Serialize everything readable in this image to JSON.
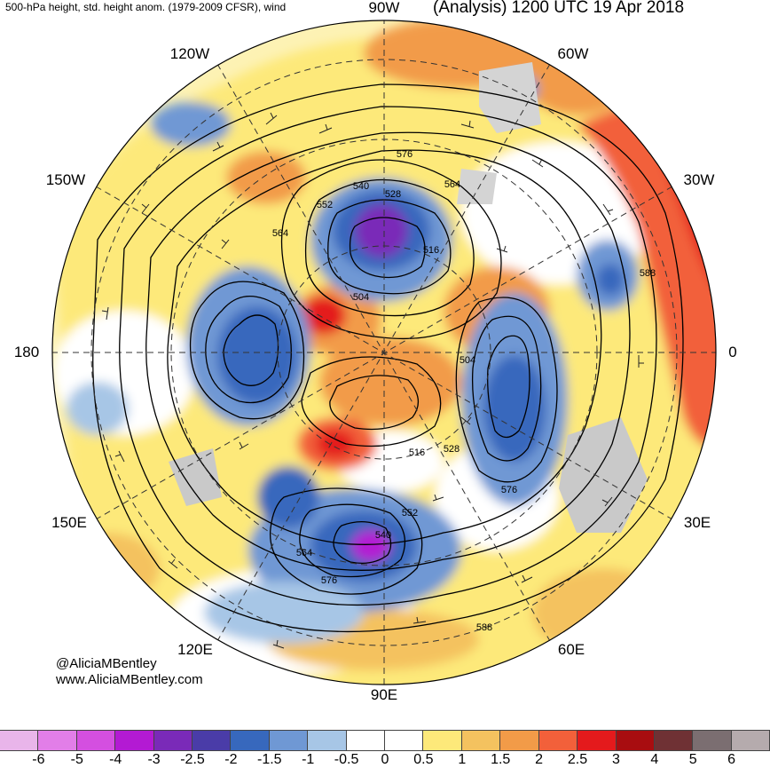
{
  "header": {
    "left_title": "500-hPa height, std. height anom. (1979-2009 CFSR), wind",
    "right_title": "(Analysis) 1200 UTC 19 Apr 2018"
  },
  "credits": {
    "handle": "@AliciaMBentley",
    "website": "www.AliciaMBentley.com"
  },
  "longitude_labels": [
    "90W",
    "60W",
    "30W",
    "0",
    "30E",
    "60E",
    "90E",
    "120E",
    "150E",
    "180",
    "150W",
    "120W"
  ],
  "contour_labels": [
    "576",
    "540",
    "528",
    "564",
    "552",
    "564",
    "516",
    "504",
    "588",
    "504",
    "516",
    "528",
    "576",
    "552",
    "540",
    "564",
    "576",
    "588"
  ],
  "colorbar": {
    "colors": [
      "#e9b5ea",
      "#e27ee8",
      "#d44fe0",
      "#b31ad3",
      "#7a2ab8",
      "#4a3ca8",
      "#3768bd",
      "#6f98d4",
      "#a7c6e6",
      "#ffffff",
      "#ffffff",
      "#fde97a",
      "#f4c25f",
      "#f29b48",
      "#f2603a",
      "#e41a1c",
      "#a80d10",
      "#6f3134",
      "#7b6e71",
      "#b5abad"
    ],
    "tick_labels": [
      "-6",
      "-5",
      "-4",
      "-3",
      "-2.5",
      "-2",
      "-1.5",
      "-1",
      "-0.5",
      "0",
      "0.5",
      "1",
      "1.5",
      "2",
      "2.5",
      "3",
      "4",
      "5",
      "6"
    ]
  },
  "colors": {
    "positive_strong": "#e41a1c",
    "positive_mid": "#f29b48",
    "positive_weak": "#fde97a",
    "negative_weak": "#a7c6e6",
    "negative_mid": "#3768bd",
    "negative_strong": "#7a2ab8",
    "land_gray": "#c9c9c9"
  }
}
